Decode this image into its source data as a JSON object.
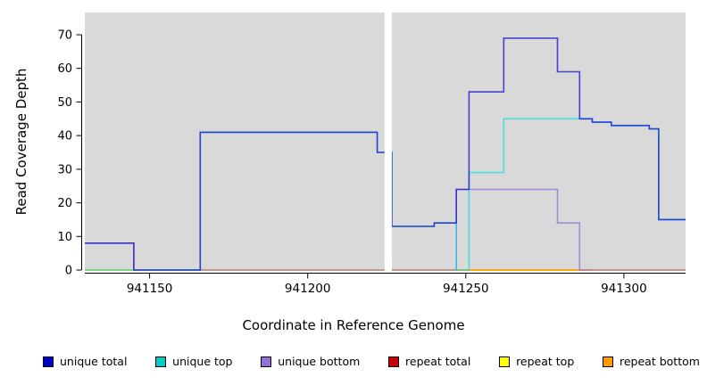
{
  "figure": {
    "background": "#ffffff",
    "panel_bg": "#d9d9d9",
    "xlabel": "Coordinate in Reference Genome",
    "ylabel": "Read Coverage Depth"
  },
  "chart_data": {
    "type": "line",
    "subtype": "step-coverage",
    "title": "",
    "xlabel": "Coordinate in Reference Genome",
    "ylabel": "Read Coverage Depth",
    "xlim": [
      941129.5,
      941319.5
    ],
    "ylim": [
      0,
      70
    ],
    "x_tick_values": [
      941150,
      941200,
      941250,
      941300
    ],
    "x_tick_labels": [
      "941150",
      "941200",
      "941250",
      "941300"
    ],
    "y_tick_values": [
      0,
      10,
      20,
      30,
      40,
      50,
      60,
      70
    ],
    "y_tick_labels": [
      "0",
      "10",
      "20",
      "30",
      "40",
      "50",
      "60",
      "70"
    ],
    "grid": false,
    "panel_bg": "#d9d9d9",
    "no_data_gap": [
      941224.3,
      941226.6
    ],
    "legend_position": "bottom",
    "series": [
      {
        "name": "repeat total",
        "color": "#cc0000",
        "opacity": 0.9,
        "steps": [
          [
            941129.5,
            0
          ],
          [
            941319.5,
            0
          ]
        ]
      },
      {
        "name": "repeat top",
        "color": "#ffff00",
        "opacity": 0.9,
        "steps": [
          [
            941129.5,
            0
          ],
          [
            941319.5,
            0
          ]
        ]
      },
      {
        "name": "repeat bottom",
        "color": "#ff9900",
        "opacity": 0.9,
        "steps": [
          [
            941247,
            0
          ],
          [
            941290,
            0
          ]
        ]
      },
      {
        "name": "unique bottom",
        "color": "#9370db",
        "opacity": 0.75,
        "steps": [
          [
            941129.5,
            8
          ],
          [
            941145,
            0
          ],
          [
            941247,
            24
          ],
          [
            941279,
            14
          ],
          [
            941286,
            0
          ],
          [
            941319.5,
            0
          ]
        ]
      },
      {
        "name": "unique top",
        "color": "#00dddd",
        "opacity": 0.65,
        "steps": [
          [
            941129.5,
            0
          ],
          [
            941166,
            41
          ],
          [
            941222,
            35
          ],
          [
            941226.6,
            13
          ],
          [
            941240,
            14
          ],
          [
            941247,
            0
          ],
          [
            941251,
            29
          ],
          [
            941262,
            45
          ],
          [
            941290,
            44
          ],
          [
            941296,
            43
          ],
          [
            941308,
            42
          ],
          [
            941311,
            15
          ],
          [
            941319.5,
            15
          ]
        ]
      },
      {
        "name": "unique total",
        "color": "#1a1acc",
        "opacity": 0.78,
        "steps": [
          [
            941129.5,
            8
          ],
          [
            941145,
            0
          ],
          [
            941166,
            41
          ],
          [
            941222,
            35
          ],
          [
            941226.6,
            13
          ],
          [
            941240,
            14
          ],
          [
            941247,
            24
          ],
          [
            941251,
            53
          ],
          [
            941262,
            69
          ],
          [
            941279,
            59
          ],
          [
            941286,
            45
          ],
          [
            941290,
            44
          ],
          [
            941296,
            43
          ],
          [
            941308,
            42
          ],
          [
            941311,
            15
          ],
          [
            941319.5,
            15
          ]
        ]
      }
    ],
    "legend": [
      {
        "label": "unique total",
        "color": "#0000cc"
      },
      {
        "label": "unique top",
        "color": "#00cccc"
      },
      {
        "label": "unique bottom",
        "color": "#9370db"
      },
      {
        "label": "repeat total",
        "color": "#cc0000"
      },
      {
        "label": "repeat top",
        "color": "#ffff00"
      },
      {
        "label": "repeat bottom",
        "color": "#ff9900"
      }
    ]
  }
}
